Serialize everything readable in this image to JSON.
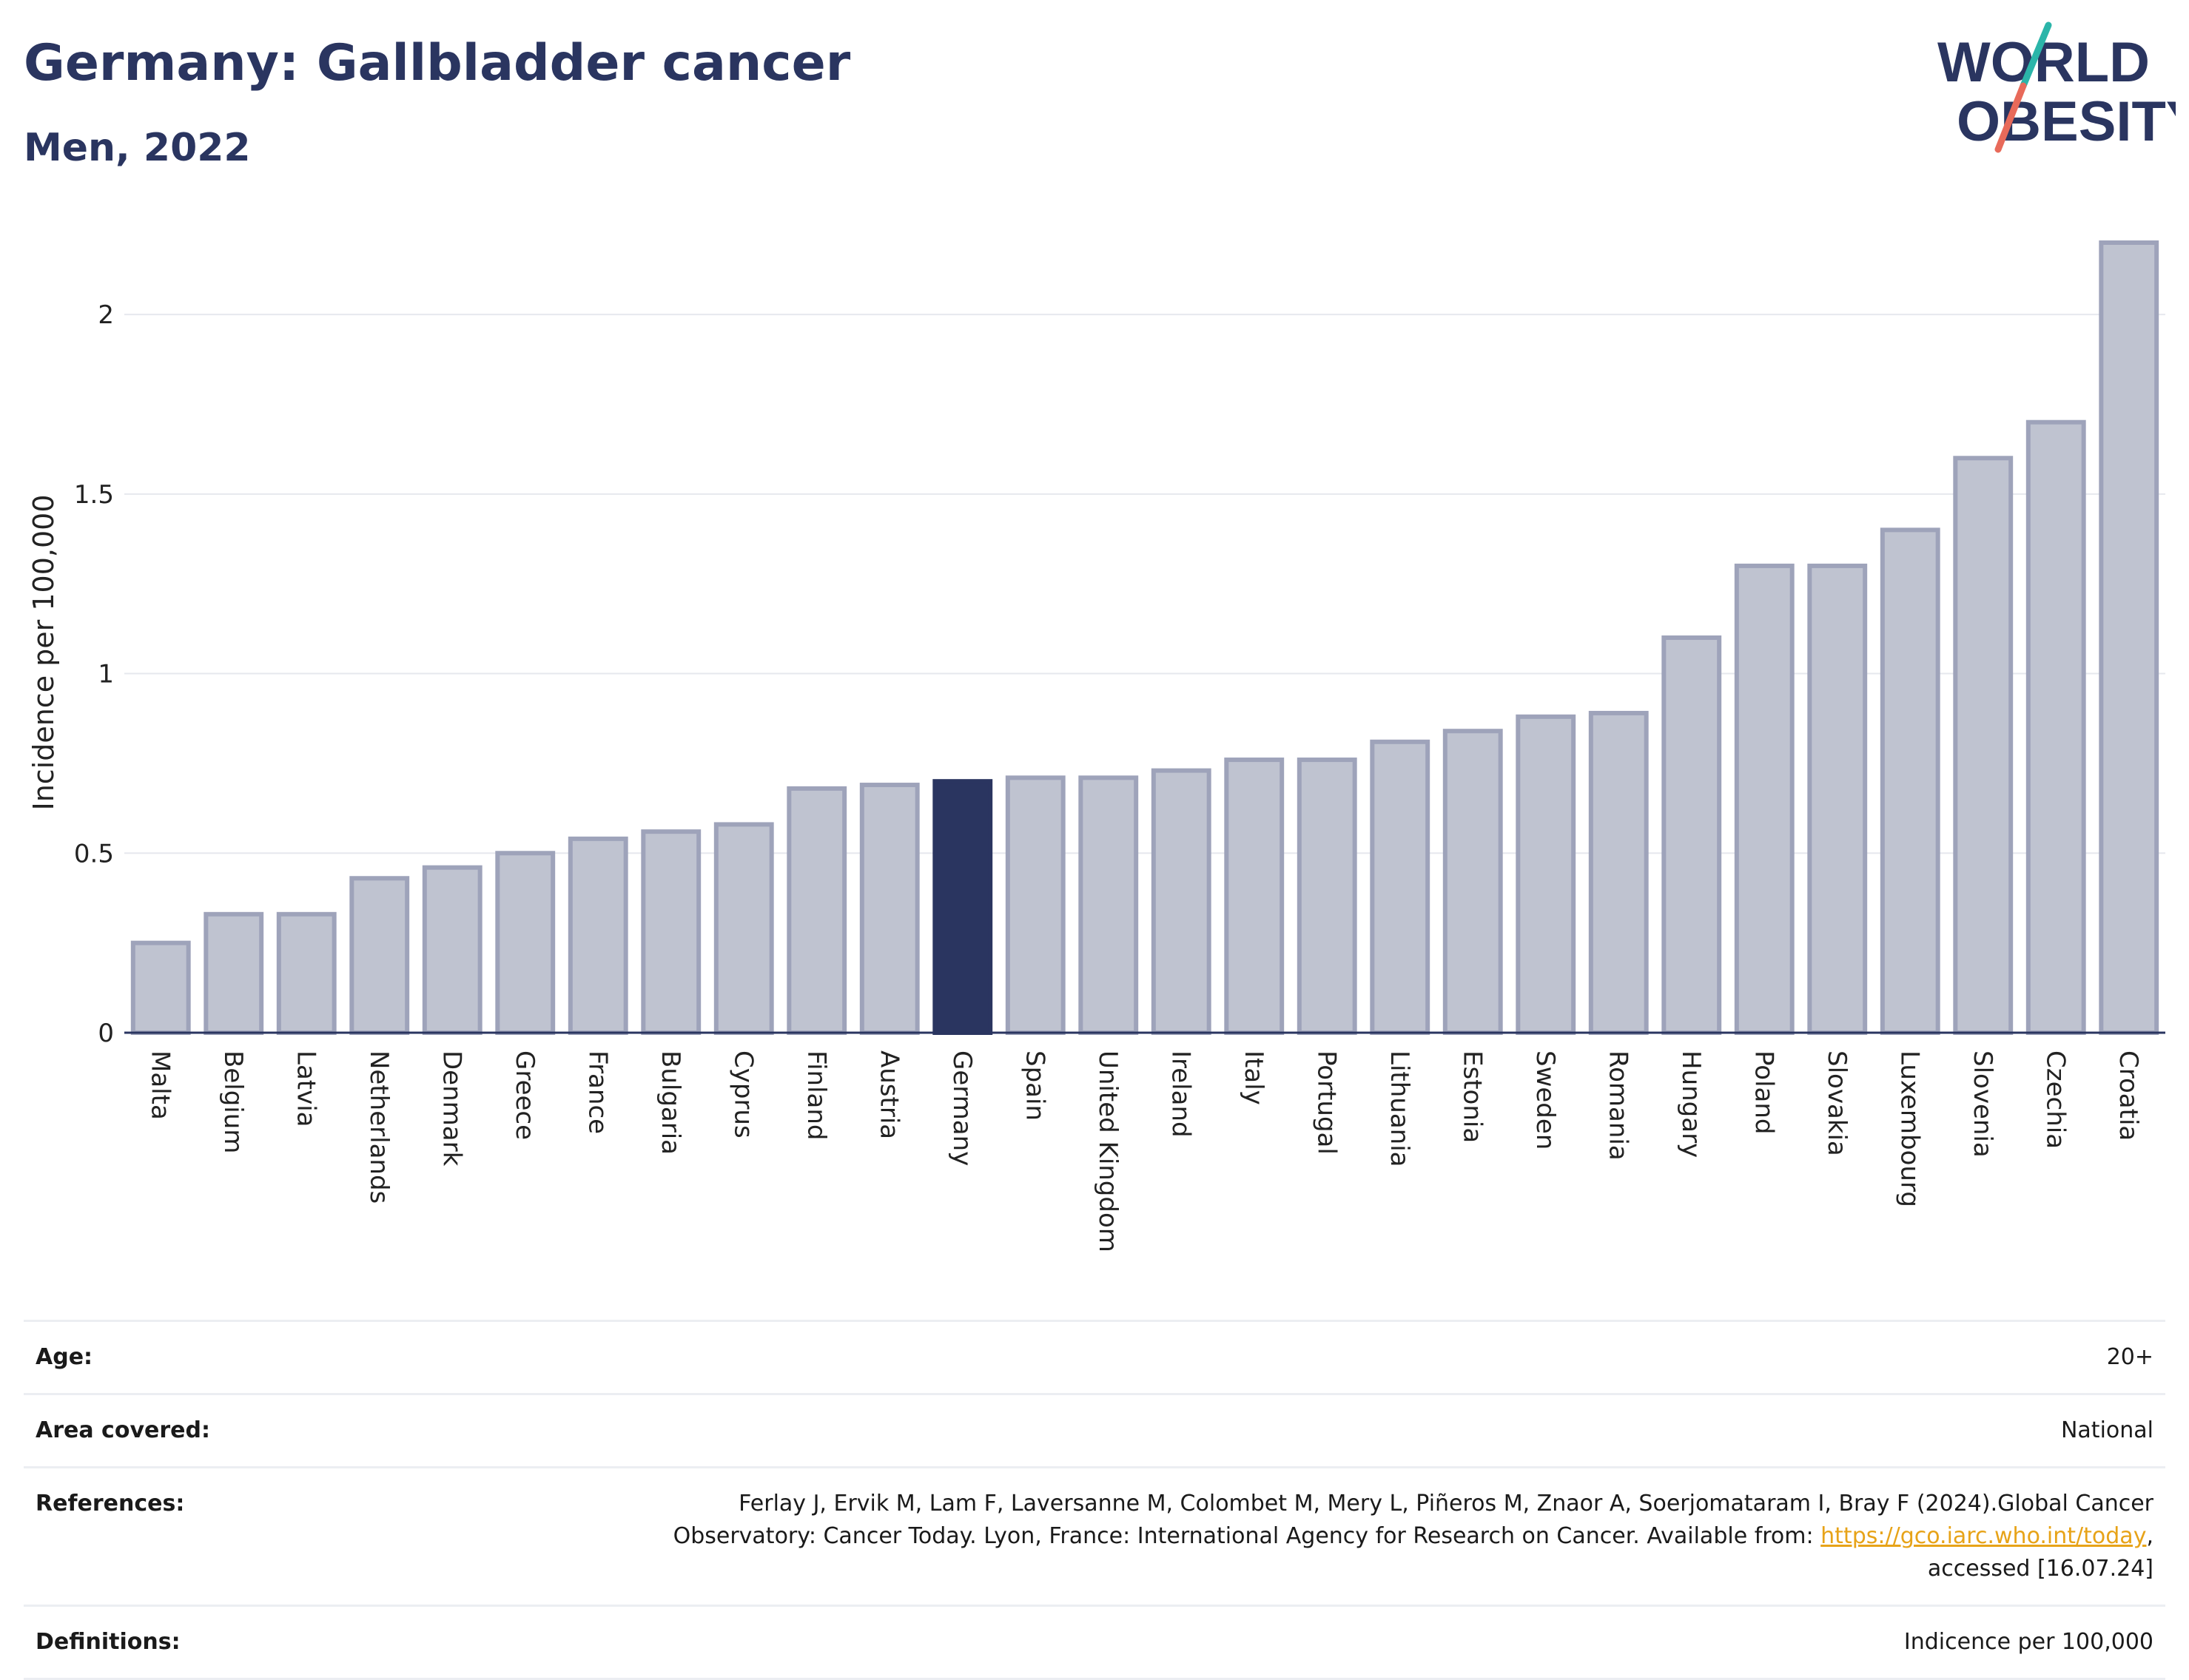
{
  "header": {
    "title": "Germany: Gallbladder cancer",
    "subtitle": "Men, 2022"
  },
  "logo": {
    "line1": "WORLD",
    "line2": "OBESITY",
    "text_color": "#2a3560",
    "slash_colors": [
      "#2bb5a9",
      "#e86a5a"
    ]
  },
  "chart_data": {
    "type": "bar",
    "ylabel": "Incidence per 100,000",
    "ylim": [
      0,
      2.2
    ],
    "yticks": [
      0,
      0.5,
      1,
      1.5,
      2
    ],
    "ytick_labels": [
      "0",
      "0.5",
      "1",
      "1.5",
      "2"
    ],
    "grid": true,
    "highlight": "Germany",
    "colors": {
      "bar": "#bfc3d0",
      "bar_edge": "#9ea3ba",
      "highlight": "#2a3560"
    },
    "categories": [
      "Malta",
      "Belgium",
      "Latvia",
      "Netherlands",
      "Denmark",
      "Greece",
      "France",
      "Bulgaria",
      "Cyprus",
      "Finland",
      "Austria",
      "Germany",
      "Spain",
      "United Kingdom",
      "Ireland",
      "Italy",
      "Portugal",
      "Lithuania",
      "Estonia",
      "Sweden",
      "Romania",
      "Hungary",
      "Poland",
      "Slovakia",
      "Luxembourg",
      "Slovenia",
      "Czechia",
      "Croatia"
    ],
    "values": [
      0.25,
      0.33,
      0.33,
      0.43,
      0.46,
      0.5,
      0.54,
      0.56,
      0.58,
      0.68,
      0.69,
      0.7,
      0.71,
      0.71,
      0.73,
      0.76,
      0.76,
      0.81,
      0.84,
      0.88,
      0.89,
      1.1,
      1.3,
      1.3,
      1.4,
      1.6,
      1.7,
      2.2
    ]
  },
  "info_table": [
    {
      "label": "Age:",
      "value": "20+"
    },
    {
      "label": "Area covered:",
      "value": "National"
    },
    {
      "label": "References:",
      "value_line1": "Ferlay J, Ervik M, Lam F, Laversanne M, Colombet M, Mery L, Piñeros M, Znaor A, Soerjomataram I, Bray F (2024).Global Cancer",
      "value_line2_prefix": "Observatory: Cancer Today. Lyon, France: International Agency for Research on Cancer. Available from: ",
      "link": "https://gco.iarc.who.int/today",
      "value_line2_suffix": ",",
      "value_line3": "accessed [16.07.24]"
    },
    {
      "label": "Definitions:",
      "value": "Indicence per 100,000"
    }
  ]
}
